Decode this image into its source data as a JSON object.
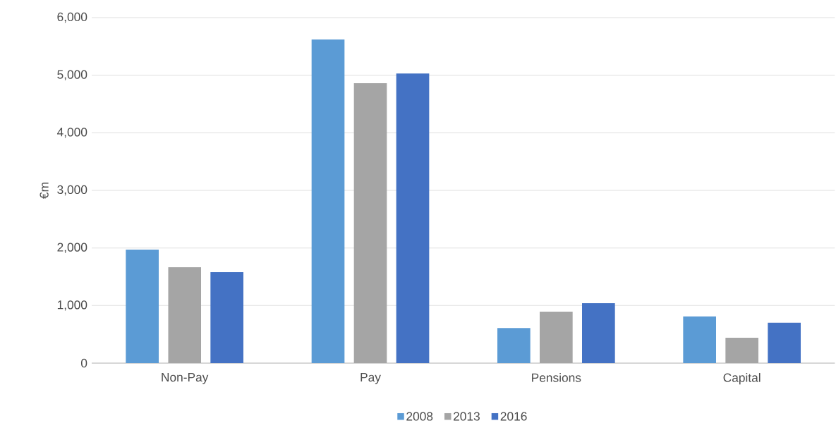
{
  "chart_data": {
    "type": "bar",
    "ylabel": "€m",
    "categories": [
      "Non-Pay",
      "Pay",
      "Pensions",
      "Capital"
    ],
    "series": [
      {
        "name": "2008",
        "color": "#5b9bd5",
        "values": [
          1970,
          5620,
          610,
          810
        ]
      },
      {
        "name": "2013",
        "color": "#a5a5a5",
        "values": [
          1665,
          4860,
          895,
          440
        ]
      },
      {
        "name": "2016",
        "color": "#4472c4",
        "values": [
          1580,
          5030,
          1040,
          700
        ]
      }
    ],
    "ylim": [
      0,
      6000
    ],
    "yticks": [
      0,
      {
        "value": 1000,
        "label": "1,000"
      },
      {
        "value": 2000,
        "label": "2,000"
      },
      {
        "value": 3000,
        "label": "3,000"
      },
      {
        "value": 4000,
        "label": "4,000"
      },
      {
        "value": 5000,
        "label": "5,000"
      },
      {
        "value": 6000,
        "label": "6,000"
      }
    ],
    "grid": "y",
    "legend": "bottom"
  }
}
